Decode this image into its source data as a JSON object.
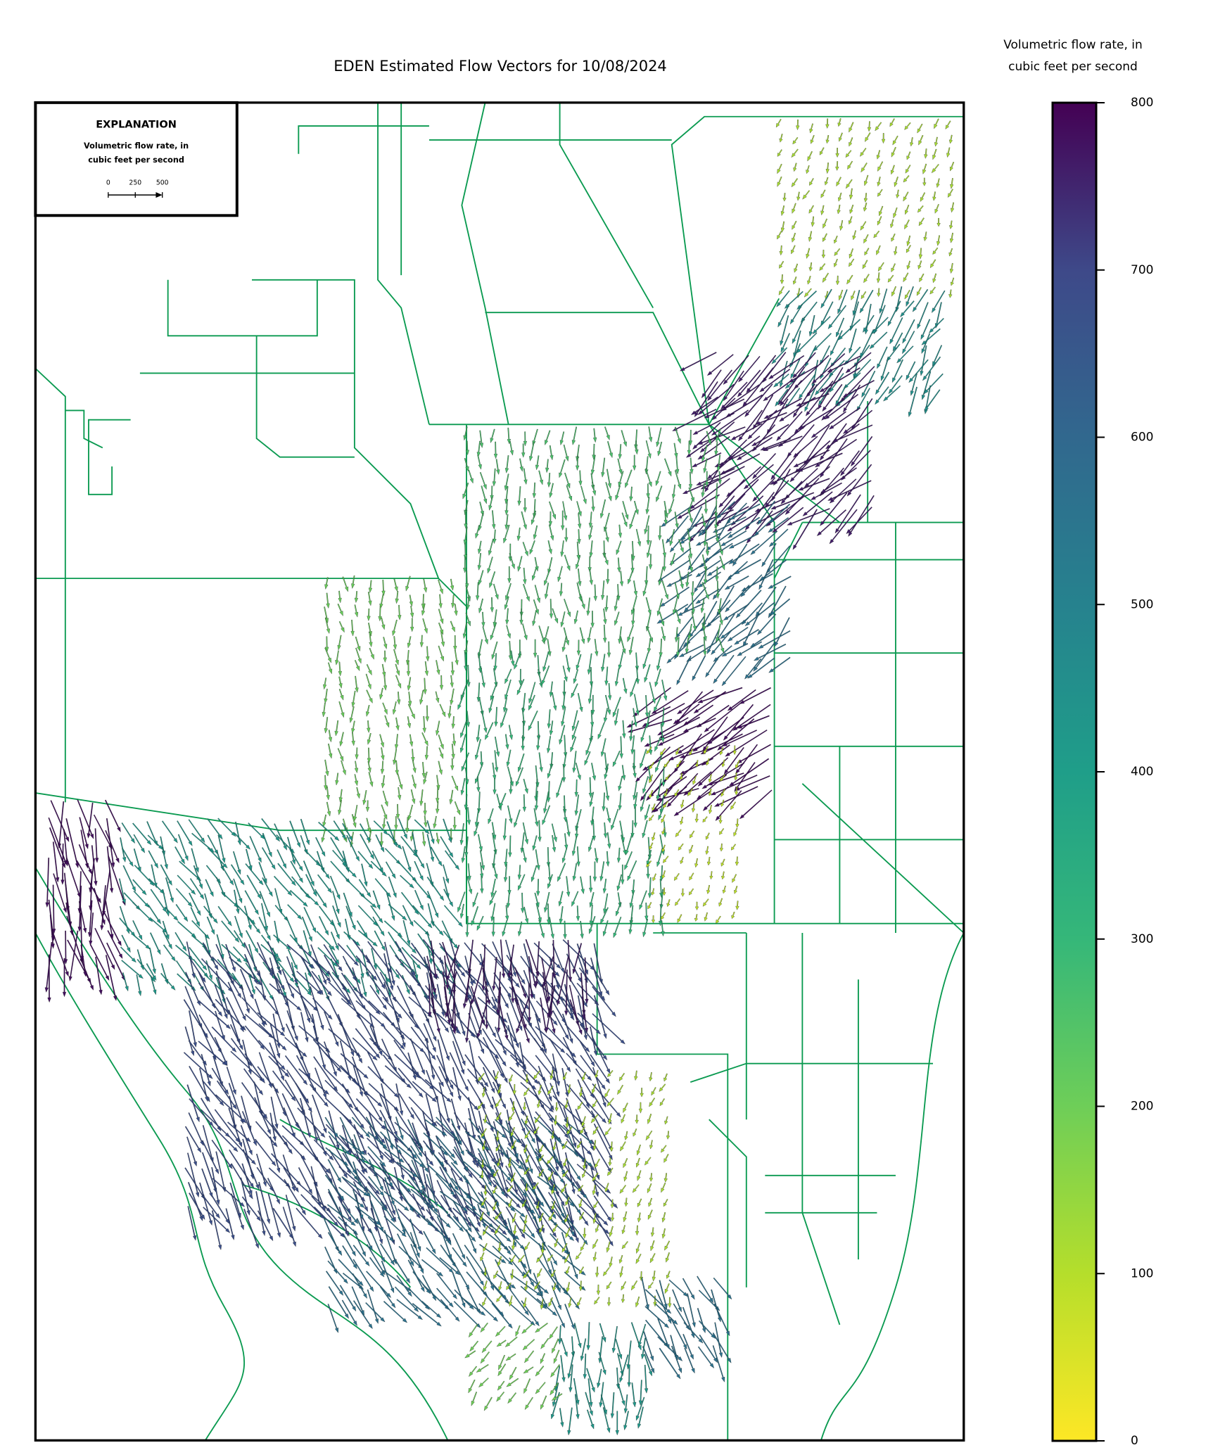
{
  "title": "EDEN Estimated Flow Vectors for 10/08/2024",
  "explanation": {
    "title": "EXPLANATION",
    "label_lines": [
      "Volumetric flow rate, in",
      "cubic feet per second"
    ],
    "scale_ticks": [
      0,
      250,
      500
    ]
  },
  "colorbar": {
    "label_lines": [
      "Volumetric flow rate, in",
      "cubic feet per second"
    ],
    "colormap": "viridis",
    "lim": [
      0,
      800
    ],
    "ticks": [
      0,
      100,
      200,
      300,
      400,
      500,
      600,
      700,
      800
    ]
  },
  "flow_regions": [
    {
      "rate": 120,
      "direction": 200
    },
    {
      "rate": 450,
      "direction": 210
    },
    {
      "rate": 760,
      "direction": 230
    },
    {
      "rate": 560,
      "direction": 225
    },
    {
      "rate": 780,
      "direction": 235
    },
    {
      "rate": 260,
      "direction": 180
    },
    {
      "rate": 300,
      "direction": 185
    },
    {
      "rate": 90,
      "direction": 200
    },
    {
      "rate": 210,
      "direction": 175
    },
    {
      "rate": 780,
      "direction": 170
    },
    {
      "rate": 420,
      "direction": 150
    },
    {
      "rate": 680,
      "direction": 150
    },
    {
      "rate": 760,
      "direction": 180
    },
    {
      "rate": 560,
      "direction": 145
    },
    {
      "rate": 120,
      "direction": 200
    },
    {
      "rate": 560,
      "direction": 150
    },
    {
      "rate": 420,
      "direction": 180
    },
    {
      "rate": 200,
      "direction": 220
    }
  ]
}
